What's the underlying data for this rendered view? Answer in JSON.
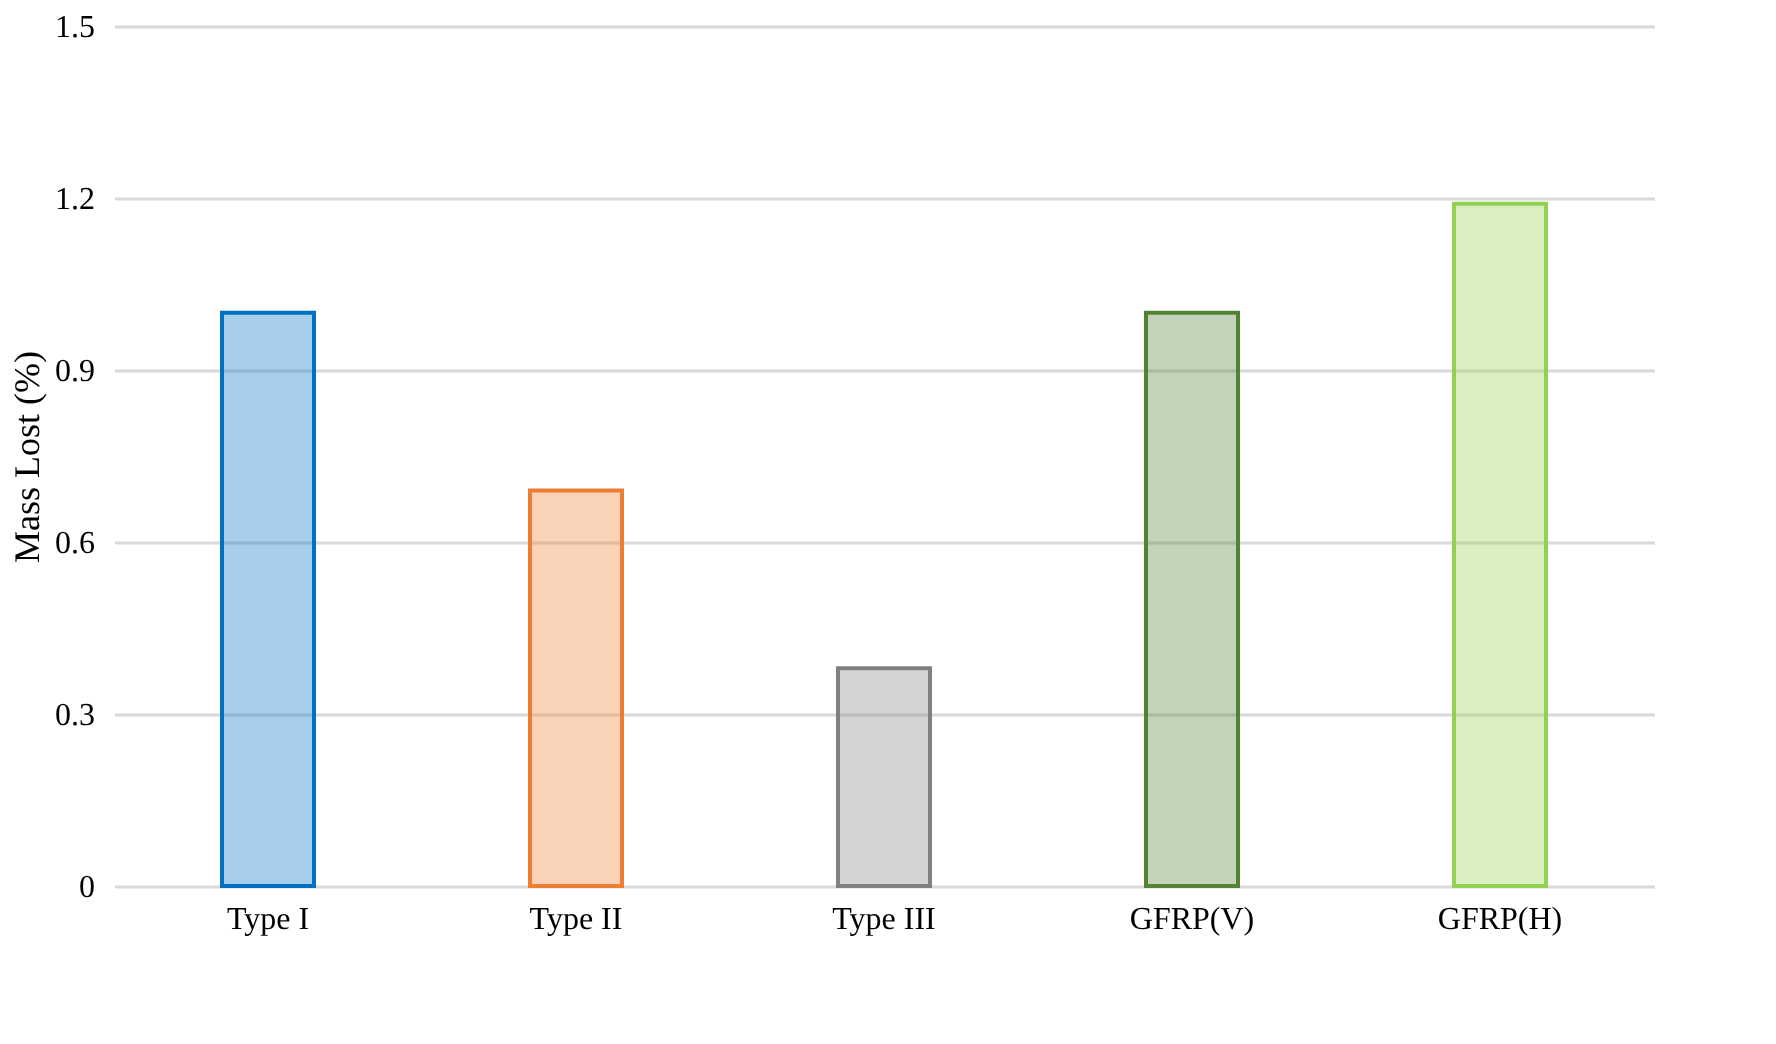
{
  "chart_data": {
    "type": "bar",
    "ylabel": "Mass Lost (%)",
    "categories": [
      "Type I",
      "Type II",
      "Type III",
      "GFRP(V)",
      "GFRP(H)"
    ],
    "values": [
      1.0,
      0.69,
      0.38,
      1.0,
      1.19
    ],
    "colors": [
      "#0070c0",
      "#ed7d31",
      "#808080",
      "#548235",
      "#92d050"
    ],
    "ylim": [
      0,
      1.5
    ],
    "yticks": [
      0,
      0.3,
      0.6,
      0.9,
      1.2,
      1.5
    ],
    "grid": "y"
  }
}
